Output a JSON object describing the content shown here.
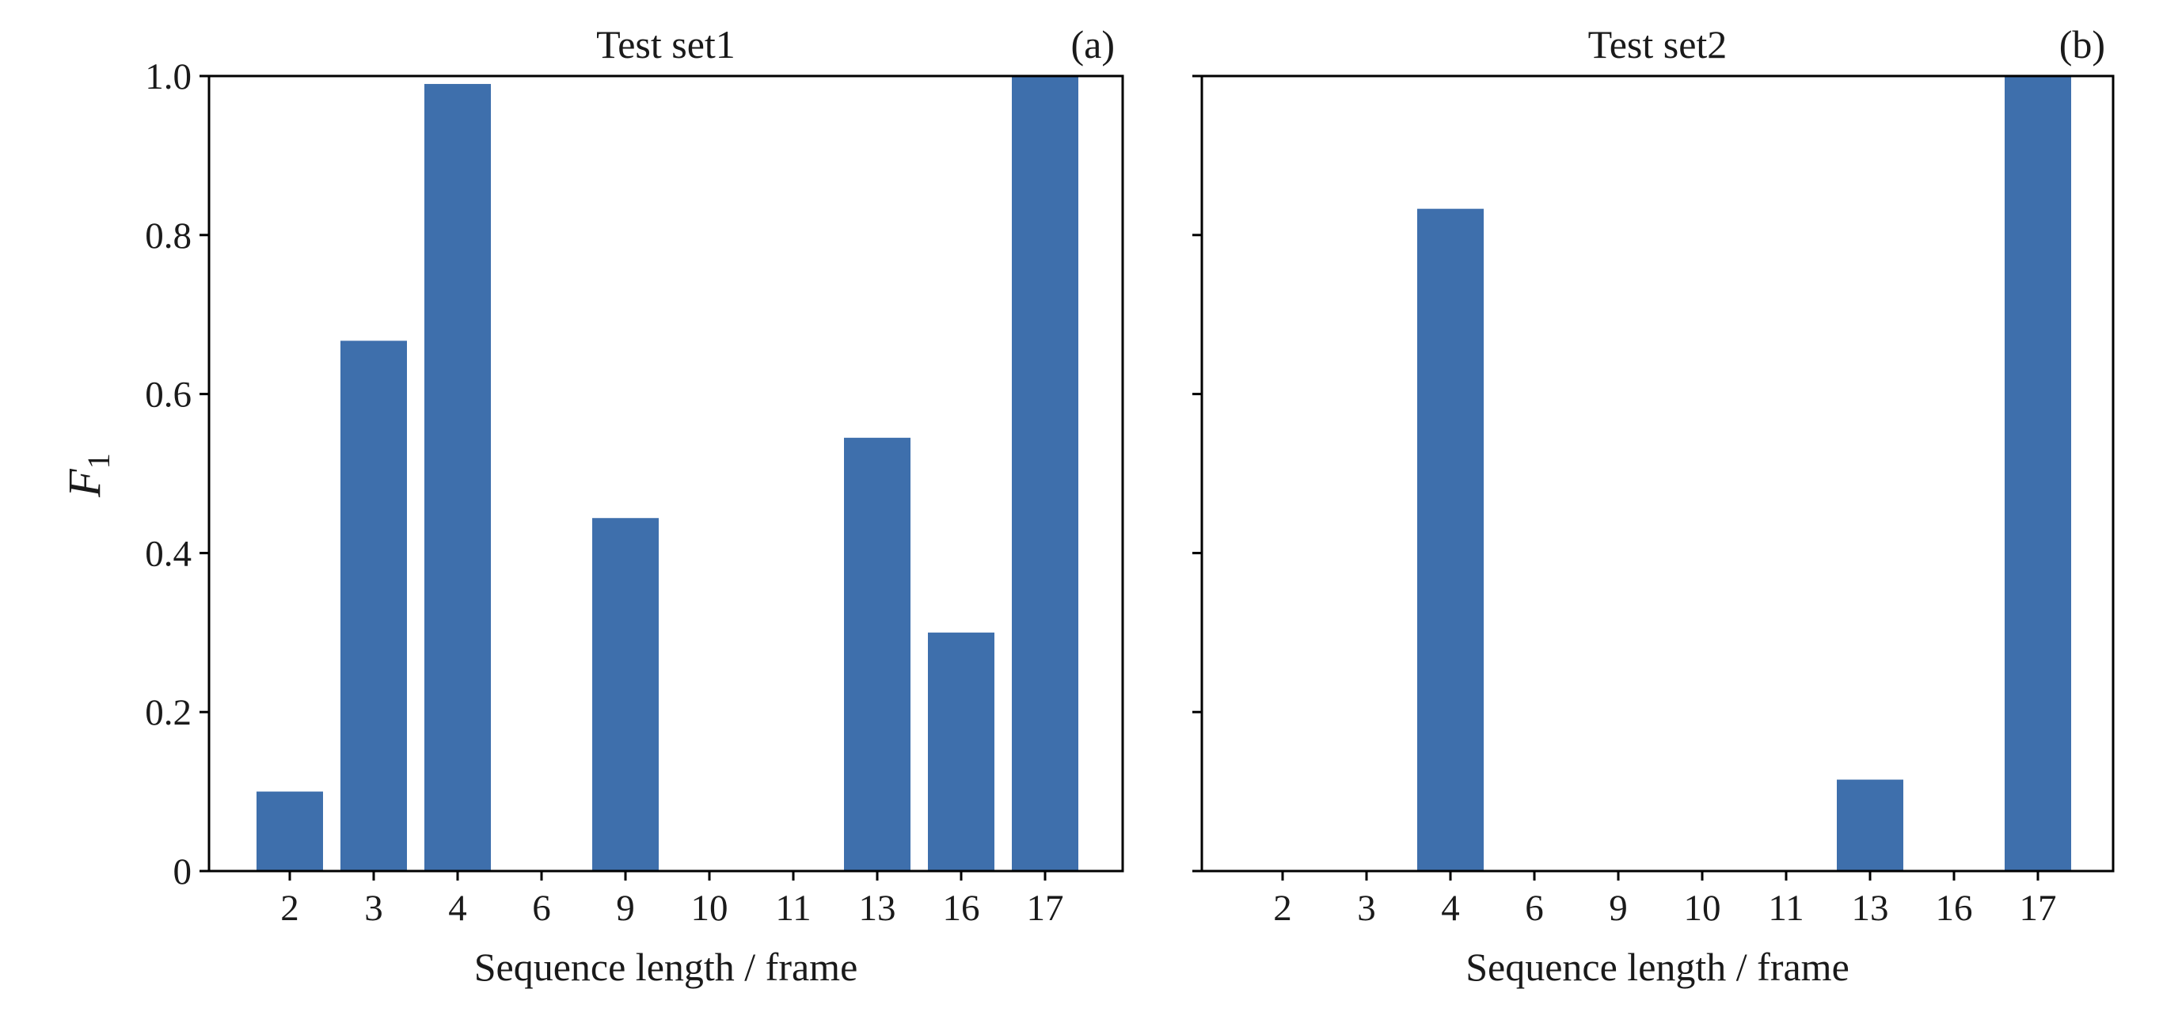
{
  "figure": {
    "ylabel_main": "F",
    "ylabel_sub": "1",
    "colors": {
      "bar": "#3e6fac",
      "frame": "#000000",
      "text": "#1a1a1a"
    }
  },
  "chart_data": [
    {
      "type": "bar",
      "title": "Test set1",
      "panel_label": "(a)",
      "xlabel": "Sequence length / frame",
      "ylabel": "F1",
      "categories": [
        "2",
        "3",
        "4",
        "6",
        "9",
        "10",
        "11",
        "13",
        "16",
        "17"
      ],
      "values": [
        0.1,
        0.667,
        0.99,
        0,
        0.444,
        0,
        0,
        0.545,
        0.3,
        1.0
      ],
      "ylim": [
        0,
        1.0
      ],
      "yticks": [
        0,
        0.2,
        0.4,
        0.6,
        0.8,
        1.0
      ],
      "ytick_labels": [
        "0",
        "0.2",
        "0.4",
        "0.6",
        "0.8",
        "1.0"
      ],
      "show_ytick_labels": true,
      "grid": false,
      "color": "#3e6fac"
    },
    {
      "type": "bar",
      "title": "Test set2",
      "panel_label": "(b)",
      "xlabel": "Sequence length / frame",
      "ylabel": "",
      "categories": [
        "2",
        "3",
        "4",
        "6",
        "9",
        "10",
        "11",
        "13",
        "16",
        "17"
      ],
      "values": [
        0,
        0,
        0.833,
        0,
        0,
        0,
        0,
        0.115,
        0,
        1.0
      ],
      "ylim": [
        0,
        1.0
      ],
      "yticks": [
        0,
        0.2,
        0.4,
        0.6,
        0.8,
        1.0
      ],
      "ytick_labels": [
        "0",
        "0.2",
        "0.4",
        "0.6",
        "0.8",
        "1.0"
      ],
      "show_ytick_labels": false,
      "grid": false,
      "color": "#3e6fac"
    }
  ]
}
